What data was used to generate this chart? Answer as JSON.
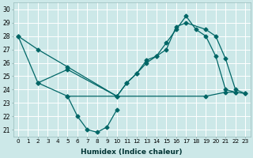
{
  "xlabel": "Humidex (Indice chaleur)",
  "bg_color": "#cce8e8",
  "line_color": "#006666",
  "grid_color": "#ffffff",
  "ylim": [
    20.5,
    30.5
  ],
  "yticks": [
    21,
    22,
    23,
    24,
    25,
    26,
    27,
    28,
    29,
    30
  ],
  "line1_x": [
    2,
    5,
    6,
    7,
    8,
    9,
    10
  ],
  "line1_y": [
    24.5,
    23.5,
    22.0,
    21.0,
    20.8,
    21.2,
    22.5
  ],
  "line2_x": [
    5,
    10,
    19,
    21,
    22,
    23
  ],
  "line2_y": [
    23.5,
    23.5,
    23.5,
    23.8,
    23.8,
    23.7
  ],
  "line3_x": [
    0,
    2,
    5,
    10,
    11,
    12,
    13,
    14,
    15,
    16,
    17,
    18,
    19,
    20,
    21,
    22
  ],
  "line3_y": [
    28.0,
    27.0,
    25.7,
    23.5,
    24.5,
    25.2,
    26.0,
    26.5,
    27.5,
    28.5,
    29.5,
    28.5,
    28.0,
    26.5,
    24.0,
    23.8
  ],
  "line4_x": [
    0,
    2,
    5,
    10,
    11,
    12,
    13,
    14,
    15,
    16,
    17,
    19,
    20,
    21,
    22,
    23
  ],
  "line4_y": [
    28.0,
    24.5,
    25.5,
    23.5,
    24.5,
    25.2,
    26.2,
    26.5,
    27.0,
    28.7,
    29.0,
    28.5,
    28.0,
    26.3,
    24.0,
    23.7
  ]
}
